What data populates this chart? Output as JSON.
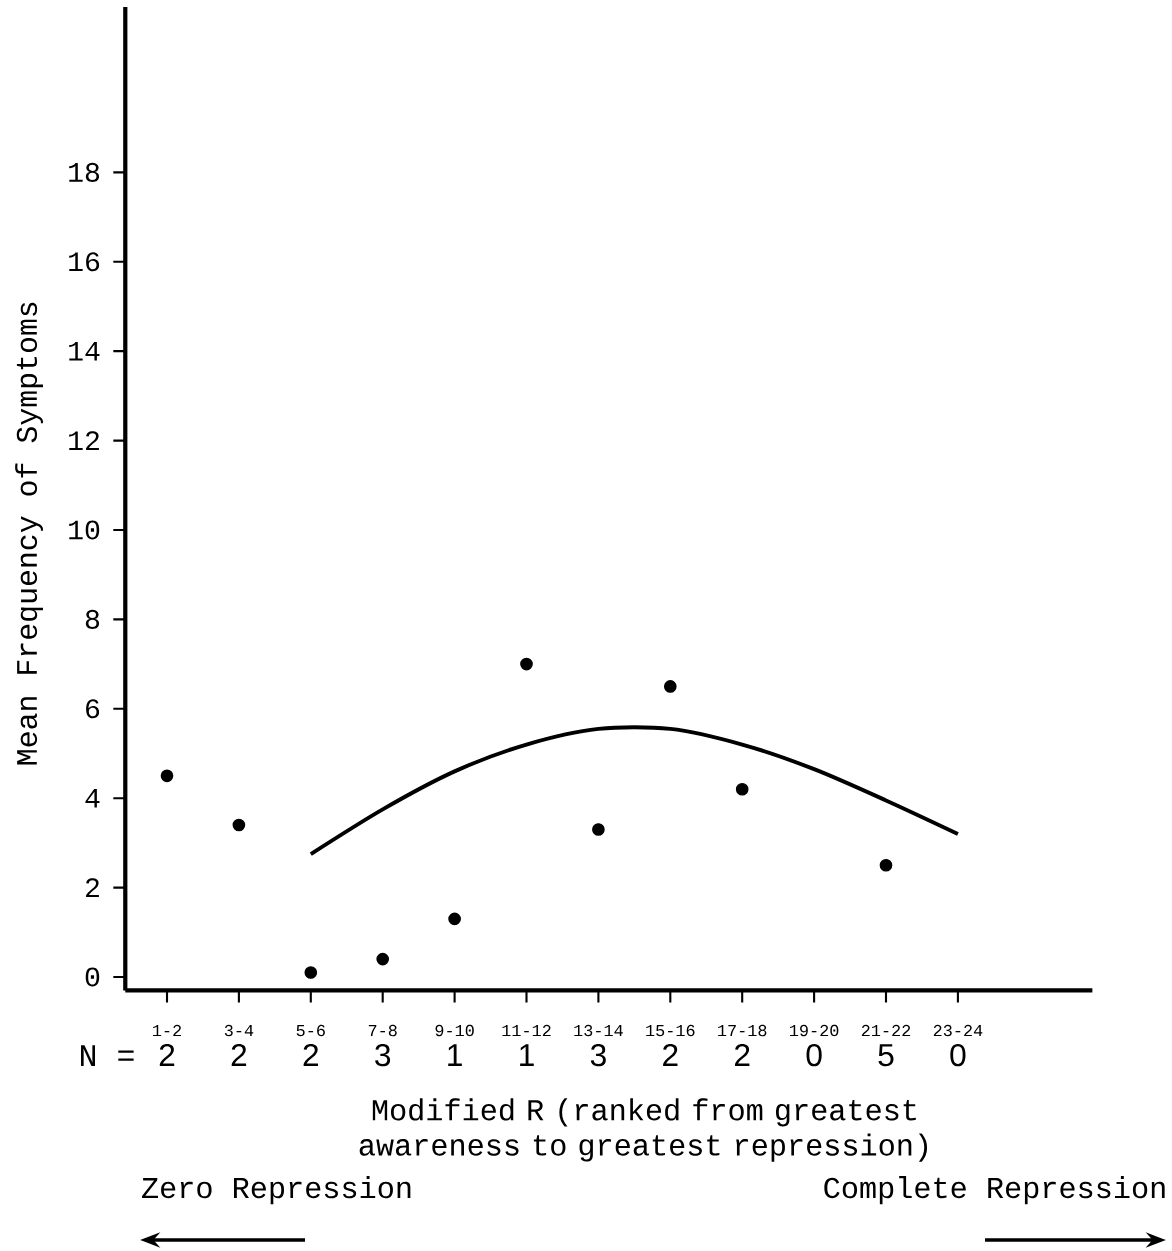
{
  "chart_data": {
    "type": "scatter",
    "ylabel": "Mean Frequency of Symptoms",
    "xlabel": "Modified R (ranked from greatest awareness to greatest repression)",
    "categories": [
      "1-2",
      "3-4",
      "5-6",
      "7-8",
      "9-10",
      "11-12",
      "13-14",
      "15-16",
      "17-18",
      "19-20",
      "21-22",
      "23-24"
    ],
    "series": [
      {
        "color": "#000000",
        "marker": "circle",
        "values": [
          4.5,
          3.4,
          0.1,
          0.4,
          1.3,
          7.0,
          3.3,
          6.5,
          4.2,
          null,
          2.5,
          null
        ]
      },
      {
        "type": "line",
        "color": "#000000",
        "marker": "none",
        "values": [
          null,
          null,
          2.75,
          3.75,
          4.6,
          5.2,
          5.55,
          5.55,
          5.2,
          4.65,
          3.95,
          3.2
        ]
      }
    ],
    "ylim": [
      -0.3,
      21.7
    ],
    "yticks": [
      0,
      2,
      4,
      6,
      8,
      10,
      12,
      14,
      16,
      18
    ],
    "annotations": [
      "N =",
      "2",
      "2",
      "2",
      "3",
      "1",
      "1",
      "3",
      "2",
      "2",
      "0",
      "5",
      "0",
      "Zero Repression",
      "Complete Repression"
    ]
  }
}
